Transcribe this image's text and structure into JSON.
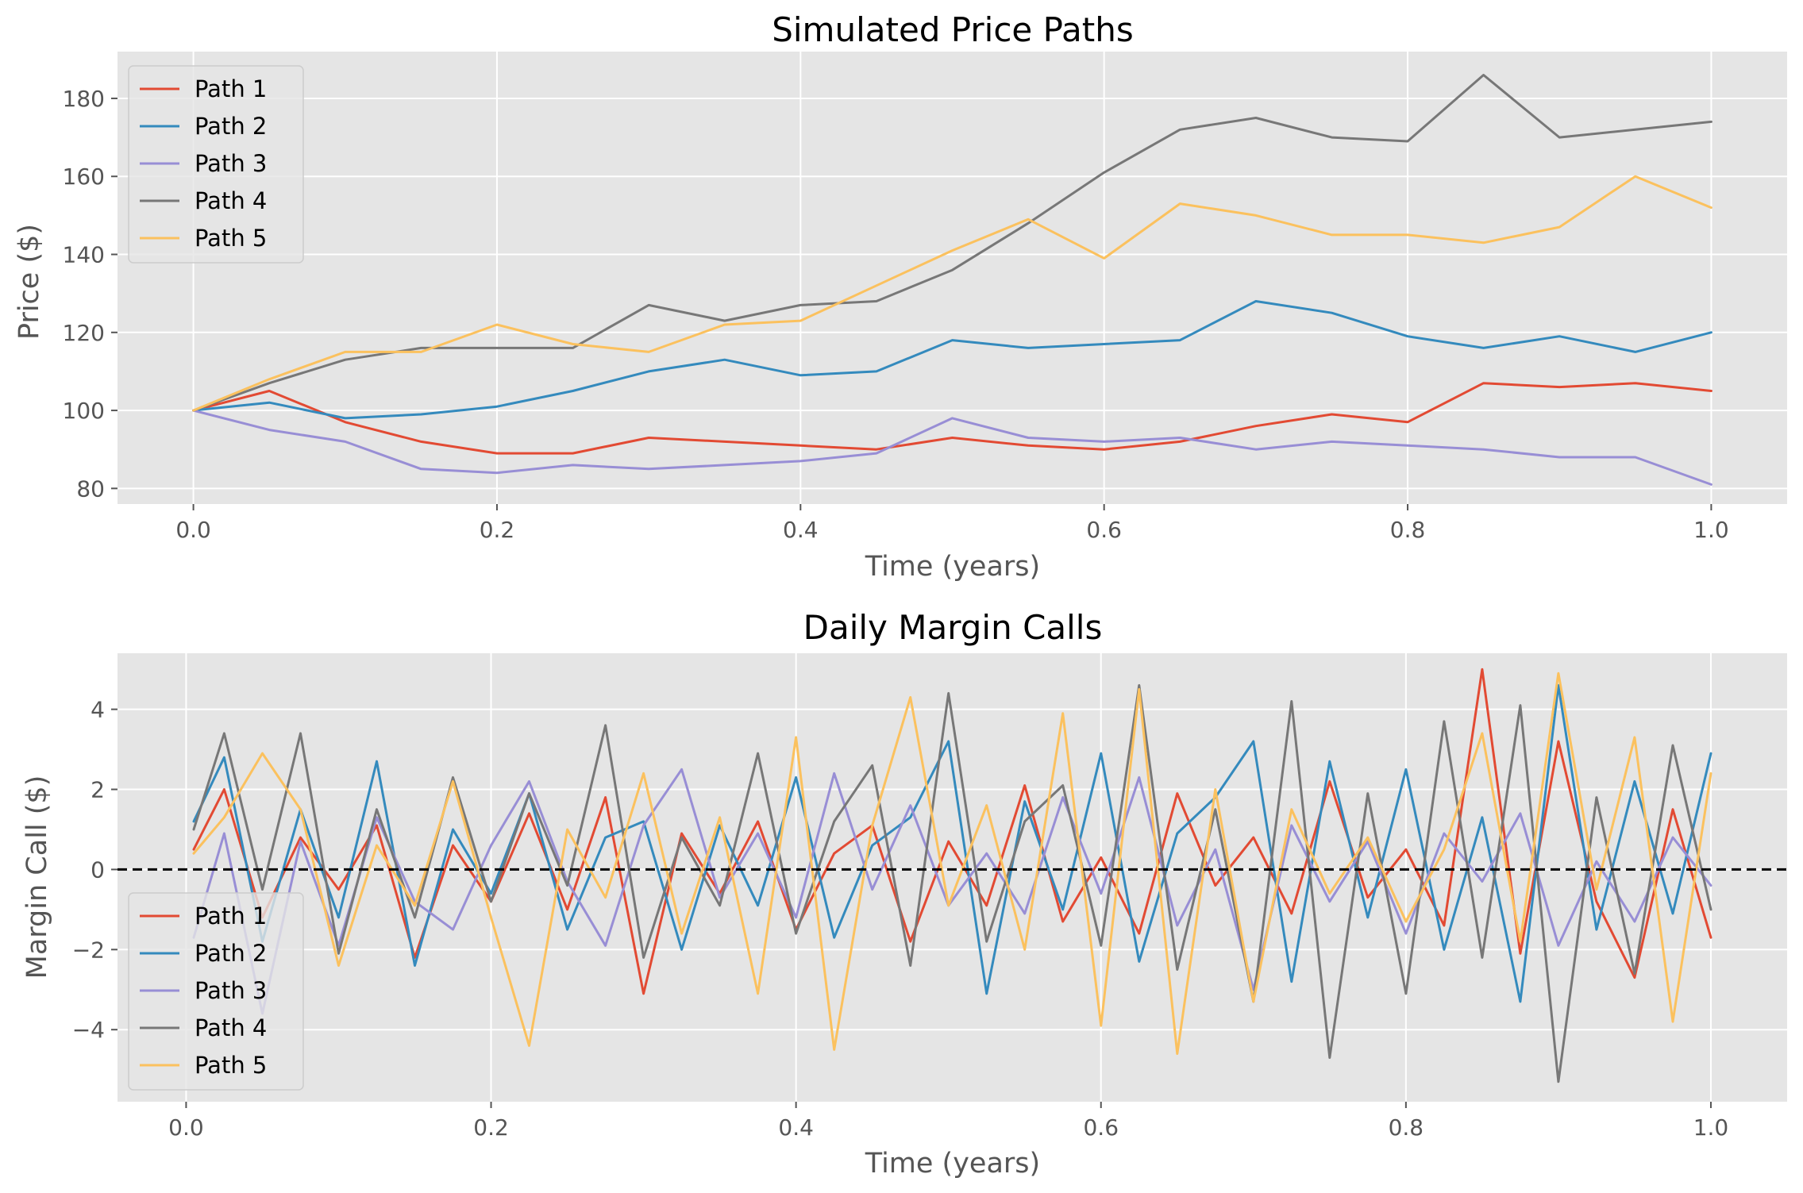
{
  "chart_data": [
    {
      "type": "line",
      "title": "Simulated Price Paths",
      "xlabel": "Time (years)",
      "ylabel": "Price ($)",
      "xlim": [
        -0.05,
        1.05
      ],
      "ylim": [
        76,
        192
      ],
      "xticks": [
        0.0,
        0.2,
        0.4,
        0.6,
        0.8,
        1.0
      ],
      "xtick_labels": [
        "0.0",
        "0.2",
        "0.4",
        "0.6",
        "0.8",
        "1.0"
      ],
      "yticks": [
        80,
        100,
        120,
        140,
        160,
        180
      ],
      "ytick_labels": [
        "80",
        "100",
        "120",
        "140",
        "160",
        "180"
      ],
      "grid": true,
      "legend_position": "upper-left",
      "x": [
        0.0,
        0.05,
        0.1,
        0.15,
        0.2,
        0.25,
        0.3,
        0.35,
        0.4,
        0.45,
        0.5,
        0.55,
        0.6,
        0.65,
        0.7,
        0.75,
        0.8,
        0.85,
        0.9,
        0.95,
        1.0
      ],
      "series": [
        {
          "name": "Path 1",
          "color": "#e24a33",
          "values": [
            100,
            105,
            97,
            92,
            89,
            89,
            93,
            92,
            91,
            90,
            93,
            91,
            90,
            92,
            96,
            99,
            97,
            107,
            106,
            107,
            105
          ]
        },
        {
          "name": "Path 2",
          "color": "#348abd",
          "values": [
            100,
            102,
            98,
            99,
            101,
            105,
            110,
            113,
            109,
            110,
            118,
            116,
            117,
            118,
            128,
            125,
            119,
            116,
            119,
            115,
            120
          ]
        },
        {
          "name": "Path 3",
          "color": "#988ed5",
          "values": [
            100,
            95,
            92,
            85,
            84,
            86,
            85,
            86,
            87,
            89,
            98,
            93,
            92,
            93,
            90,
            92,
            91,
            90,
            88,
            88,
            81
          ]
        },
        {
          "name": "Path 4",
          "color": "#777777",
          "values": [
            100,
            107,
            113,
            116,
            116,
            116,
            127,
            123,
            127,
            128,
            136,
            148,
            161,
            172,
            175,
            170,
            169,
            186,
            170,
            172,
            174
          ]
        },
        {
          "name": "Path 5",
          "color": "#fbc15e",
          "values": [
            100,
            108,
            115,
            115,
            122,
            117,
            115,
            122,
            123,
            132,
            141,
            149,
            139,
            153,
            150,
            145,
            145,
            143,
            147,
            160,
            152
          ]
        }
      ]
    },
    {
      "type": "line",
      "title": "Daily Margin Calls",
      "xlabel": "Time (years)",
      "ylabel": "Margin Call ($)",
      "xlim": [
        -0.045,
        1.05
      ],
      "ylim": [
        -5.8,
        5.4
      ],
      "xticks": [
        0.0,
        0.2,
        0.4,
        0.6,
        0.8,
        1.0
      ],
      "xtick_labels": [
        "0.0",
        "0.2",
        "0.4",
        "0.6",
        "0.8",
        "1.0"
      ],
      "yticks": [
        -4,
        -2,
        0,
        2,
        4
      ],
      "ytick_labels": [
        "−4",
        "−2",
        "0",
        "2",
        "4"
      ],
      "grid": true,
      "reference_line": {
        "y": 0,
        "style": "dashed",
        "color": "#000000"
      },
      "legend_position": "lower-left",
      "x": [
        0.005,
        0.025,
        0.05,
        0.075,
        0.1,
        0.125,
        0.15,
        0.175,
        0.2,
        0.225,
        0.25,
        0.275,
        0.3,
        0.325,
        0.35,
        0.375,
        0.4,
        0.425,
        0.45,
        0.475,
        0.5,
        0.525,
        0.55,
        0.575,
        0.6,
        0.625,
        0.65,
        0.675,
        0.7,
        0.725,
        0.75,
        0.775,
        0.8,
        0.825,
        0.85,
        0.875,
        0.9,
        0.925,
        0.95,
        0.975,
        1.0
      ],
      "series": [
        {
          "name": "Path 1",
          "color": "#e24a33",
          "values": [
            0.5,
            2.0,
            -1.2,
            0.8,
            -0.5,
            1.1,
            -2.2,
            0.6,
            -0.8,
            1.4,
            -1.0,
            1.8,
            -3.1,
            0.9,
            -0.6,
            1.2,
            -1.5,
            0.4,
            1.1,
            -1.8,
            0.7,
            -0.9,
            2.1,
            -1.3,
            0.3,
            -1.6,
            1.9,
            -0.4,
            0.8,
            -1.1,
            2.2,
            -0.7,
            0.5,
            -1.4,
            5.0,
            -2.1,
            3.2,
            -0.8,
            -2.7,
            1.5,
            -1.7
          ]
        },
        {
          "name": "Path 2",
          "color": "#348abd",
          "values": [
            1.2,
            2.8,
            -1.8,
            1.5,
            -1.2,
            2.7,
            -2.4,
            1.0,
            -0.6,
            1.9,
            -1.5,
            0.8,
            1.2,
            -2.0,
            1.1,
            -0.9,
            2.3,
            -1.7,
            0.6,
            1.3,
            3.2,
            -3.1,
            1.7,
            -1.0,
            2.9,
            -2.3,
            0.9,
            1.8,
            3.2,
            -2.8,
            2.7,
            -1.2,
            2.5,
            -2.0,
            1.3,
            -3.3,
            4.6,
            -1.5,
            2.2,
            -1.1,
            2.9
          ]
        },
        {
          "name": "Path 3",
          "color": "#988ed5",
          "values": [
            -1.7,
            0.9,
            -3.6,
            0.7,
            -1.9,
            1.3,
            -0.8,
            -1.5,
            0.6,
            2.2,
            -0.3,
            -1.9,
            1.1,
            2.5,
            -0.7,
            0.9,
            -1.2,
            2.4,
            -0.5,
            1.6,
            -0.9,
            0.4,
            -1.1,
            1.8,
            -0.6,
            2.3,
            -1.4,
            0.5,
            -3.0,
            1.1,
            -0.8,
            0.7,
            -1.6,
            0.9,
            -0.3,
            1.4,
            -1.9,
            0.2,
            -1.3,
            0.8,
            -0.4
          ]
        },
        {
          "name": "Path 4",
          "color": "#777777",
          "values": [
            1.0,
            3.4,
            -0.5,
            3.4,
            -2.1,
            1.5,
            -1.2,
            2.3,
            -0.8,
            1.9,
            -0.4,
            3.6,
            -2.2,
            0.8,
            -0.9,
            2.9,
            -1.6,
            1.2,
            2.6,
            -2.4,
            4.4,
            -1.8,
            1.2,
            2.1,
            -1.9,
            4.6,
            -2.5,
            1.5,
            -3.3,
            4.2,
            -4.7,
            1.9,
            -3.1,
            3.7,
            -2.2,
            4.1,
            -5.3,
            1.8,
            -2.6,
            3.1,
            -1.0
          ]
        },
        {
          "name": "Path 5",
          "color": "#fbc15e",
          "values": [
            0.4,
            1.3,
            2.9,
            1.5,
            -2.4,
            0.6,
            -0.9,
            2.2,
            -1.2,
            -4.4,
            1.0,
            -0.7,
            2.4,
            -1.6,
            1.3,
            -3.1,
            3.3,
            -4.5,
            1.1,
            4.3,
            -0.9,
            1.6,
            -2.0,
            3.9,
            -3.9,
            4.5,
            -4.6,
            2.0,
            -3.3,
            1.5,
            -0.6,
            0.8,
            -1.3,
            0.5,
            3.4,
            -1.8,
            4.9,
            -0.5,
            3.3,
            -3.8,
            2.4
          ]
        }
      ]
    }
  ]
}
